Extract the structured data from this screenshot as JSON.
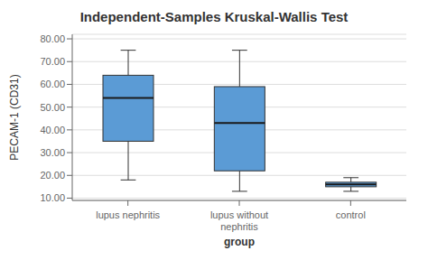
{
  "chart_data": {
    "type": "box",
    "title": "Independent-Samples Kruskal-Wallis Test",
    "xlabel": "group",
    "ylabel": "PECAM-1 (CD31)",
    "categories": [
      "lupus nephritis",
      "lupus without\nnephritis",
      "control"
    ],
    "whisker_low": [
      18,
      13,
      13
    ],
    "q1": [
      35,
      22,
      15
    ],
    "median": [
      54,
      43,
      16
    ],
    "q3": [
      64,
      59,
      17
    ],
    "whisker_high": [
      75,
      75,
      19
    ],
    "color": "#5B9BD5",
    "ylim": [
      9,
      82
    ],
    "yticks": [
      {
        "value": 10,
        "label": "10.00"
      },
      {
        "value": 20,
        "label": "20.00"
      },
      {
        "value": 30,
        "label": "30.00"
      },
      {
        "value": 40,
        "label": "40.00"
      },
      {
        "value": 50,
        "label": "50.00"
      },
      {
        "value": 60,
        "label": "60.00"
      },
      {
        "value": 70,
        "label": "70.00"
      },
      {
        "value": 80,
        "label": "80.00"
      }
    ],
    "grid": true
  }
}
